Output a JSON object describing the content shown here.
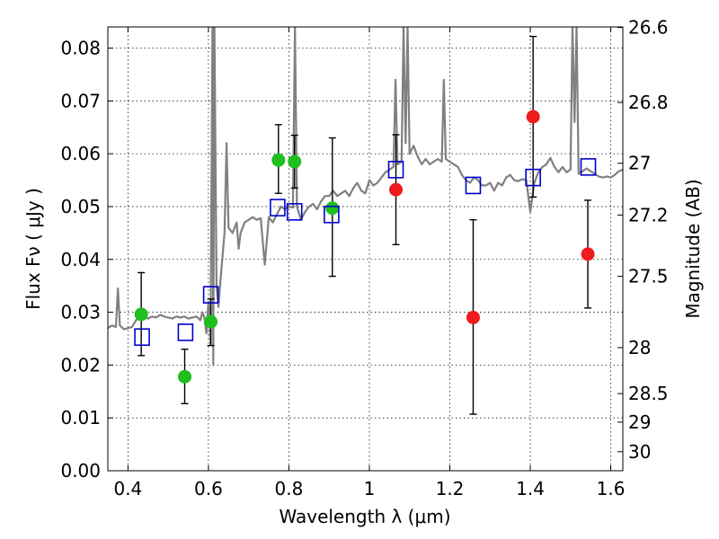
{
  "chart_data": {
    "type": "scatter",
    "xlabel": "Wavelength  λ (μm)",
    "ylabel": "Flux  Fν  ( μJy )",
    "y2label": "Magnitude (AB)",
    "xlim": [
      0.35,
      1.63
    ],
    "ylim": [
      0.0,
      0.084
    ],
    "x_ticks": [
      0.4,
      0.6,
      0.8,
      1.0,
      1.2,
      1.4,
      1.6
    ],
    "x_tick_labels": [
      "0.4",
      "0.6",
      "0.8",
      "1",
      "1.2",
      "1.4",
      "1.6"
    ],
    "y_ticks": [
      0.0,
      0.01,
      0.02,
      0.03,
      0.04,
      0.05,
      0.06,
      0.07,
      0.08
    ],
    "y_tick_labels": [
      "0.00",
      "0.01",
      "0.02",
      "0.03",
      "0.04",
      "0.05",
      "0.06",
      "0.07",
      "0.08"
    ],
    "y2_ticks": [
      {
        "label": "26.6",
        "flux": 0.0839
      },
      {
        "label": "26.8",
        "flux": 0.0697
      },
      {
        "label": "27",
        "flux": 0.0582
      },
      {
        "label": "27.2",
        "flux": 0.0484
      },
      {
        "label": "27.5",
        "flux": 0.0368
      },
      {
        "label": "28",
        "flux": 0.0233
      },
      {
        "label": "28.5",
        "flux": 0.0146
      },
      {
        "label": "29",
        "flux": 0.0092
      },
      {
        "label": "30",
        "flux": 0.0036
      }
    ],
    "colors": {
      "model": "#808080",
      "green": "#1ebf1e",
      "red": "#ee1c1c",
      "square": "#0000cc",
      "errorbar": "#000000"
    },
    "series": [
      {
        "name": "model spectrum",
        "kind": "line",
        "x": [
          0.35,
          0.36,
          0.37,
          0.375,
          0.38,
          0.39,
          0.4,
          0.41,
          0.42,
          0.43,
          0.44,
          0.45,
          0.46,
          0.47,
          0.48,
          0.49,
          0.5,
          0.51,
          0.52,
          0.53,
          0.54,
          0.55,
          0.56,
          0.57,
          0.58,
          0.585,
          0.59,
          0.595,
          0.6,
          0.605,
          0.61,
          0.612,
          0.615,
          0.62,
          0.625,
          0.63,
          0.64,
          0.645,
          0.65,
          0.66,
          0.67,
          0.675,
          0.68,
          0.69,
          0.7,
          0.71,
          0.72,
          0.73,
          0.74,
          0.75,
          0.76,
          0.77,
          0.78,
          0.79,
          0.8,
          0.81,
          0.815,
          0.82,
          0.83,
          0.84,
          0.85,
          0.86,
          0.87,
          0.88,
          0.89,
          0.9,
          0.91,
          0.92,
          0.93,
          0.94,
          0.95,
          0.96,
          0.97,
          0.98,
          0.99,
          1.0,
          1.01,
          1.02,
          1.03,
          1.04,
          1.05,
          1.06,
          1.065,
          1.07,
          1.08,
          1.085,
          1.09,
          1.095,
          1.1,
          1.11,
          1.12,
          1.13,
          1.14,
          1.15,
          1.16,
          1.17,
          1.18,
          1.185,
          1.19,
          1.2,
          1.21,
          1.22,
          1.23,
          1.24,
          1.25,
          1.26,
          1.27,
          1.28,
          1.29,
          1.3,
          1.31,
          1.32,
          1.33,
          1.34,
          1.35,
          1.36,
          1.37,
          1.38,
          1.39,
          1.4,
          1.41,
          1.42,
          1.43,
          1.44,
          1.45,
          1.46,
          1.47,
          1.48,
          1.49,
          1.5,
          1.505,
          1.51,
          1.515,
          1.52,
          1.53,
          1.54,
          1.55,
          1.56,
          1.57,
          1.58,
          1.59,
          1.6,
          1.61,
          1.62,
          1.63
        ],
        "y": [
          0.027,
          0.0275,
          0.0272,
          0.0345,
          0.0275,
          0.0268,
          0.027,
          0.0272,
          0.0285,
          0.029,
          0.0292,
          0.0288,
          0.0292,
          0.029,
          0.0295,
          0.0292,
          0.029,
          0.0288,
          0.0292,
          0.029,
          0.0292,
          0.0288,
          0.029,
          0.0292,
          0.0285,
          0.03,
          0.029,
          0.026,
          0.032,
          0.024,
          0.084,
          0.02,
          0.084,
          0.035,
          0.031,
          0.036,
          0.045,
          0.062,
          0.046,
          0.045,
          0.047,
          0.042,
          0.045,
          0.047,
          0.0475,
          0.048,
          0.0475,
          0.0478,
          0.039,
          0.048,
          0.047,
          0.0485,
          0.05,
          0.0495,
          0.05,
          0.0498,
          0.084,
          0.05,
          0.0475,
          0.049,
          0.05,
          0.0505,
          0.0495,
          0.051,
          0.052,
          0.052,
          0.053,
          0.052,
          0.0525,
          0.053,
          0.052,
          0.0535,
          0.0545,
          0.053,
          0.0525,
          0.055,
          0.054,
          0.0545,
          0.0555,
          0.0565,
          0.057,
          0.0575,
          0.074,
          0.058,
          0.0585,
          0.084,
          0.062,
          0.084,
          0.06,
          0.0615,
          0.0595,
          0.058,
          0.059,
          0.058,
          0.0585,
          0.059,
          0.0585,
          0.074,
          0.059,
          0.0585,
          0.058,
          0.0575,
          0.056,
          0.055,
          0.0545,
          0.0555,
          0.055,
          0.054,
          0.054,
          0.0545,
          0.053,
          0.0545,
          0.054,
          0.0555,
          0.056,
          0.055,
          0.0548,
          0.0552,
          0.055,
          0.049,
          0.0545,
          0.0565,
          0.0575,
          0.058,
          0.0592,
          0.0575,
          0.0565,
          0.0575,
          0.0565,
          0.057,
          0.084,
          0.066,
          0.084,
          0.0562,
          0.0567,
          0.0572,
          0.0567,
          0.0562,
          0.0557,
          0.0555,
          0.0557,
          0.0555,
          0.056,
          0.0567,
          0.057
        ]
      },
      {
        "name": "green points",
        "kind": "points",
        "marker": "circle",
        "points": [
          {
            "x": 0.433,
            "y": 0.0296,
            "yerr": [
              0.0218,
              0.0375
            ]
          },
          {
            "x": 0.541,
            "y": 0.0178,
            "yerr": [
              0.0127,
              0.023
            ]
          },
          {
            "x": 0.606,
            "y": 0.0282,
            "yerr": [
              0.0237,
              0.0325
            ]
          },
          {
            "x": 0.774,
            "y": 0.0588,
            "yerr": [
              0.0525,
              0.0655
            ]
          },
          {
            "x": 0.814,
            "y": 0.0585,
            "yerr": [
              0.0535,
              0.0635
            ]
          },
          {
            "x": 0.908,
            "y": 0.0497,
            "yerr": [
              0.0368,
              0.063
            ]
          }
        ]
      },
      {
        "name": "red points",
        "kind": "points",
        "marker": "circle",
        "points": [
          {
            "x": 1.066,
            "y": 0.0532,
            "yerr": [
              0.0428,
              0.0636
            ]
          },
          {
            "x": 1.258,
            "y": 0.029,
            "yerr": [
              0.0107,
              0.0475
            ]
          },
          {
            "x": 1.407,
            "y": 0.067,
            "yerr": [
              0.0518,
              0.0822
            ]
          },
          {
            "x": 1.543,
            "y": 0.041,
            "yerr": [
              0.0308,
              0.0512
            ]
          }
        ]
      },
      {
        "name": "model photometry",
        "kind": "points",
        "marker": "square",
        "points": [
          {
            "x": 0.435,
            "y": 0.0253
          },
          {
            "x": 0.543,
            "y": 0.0262
          },
          {
            "x": 0.606,
            "y": 0.0333
          },
          {
            "x": 0.772,
            "y": 0.0498
          },
          {
            "x": 0.814,
            "y": 0.049
          },
          {
            "x": 0.906,
            "y": 0.0485
          },
          {
            "x": 1.066,
            "y": 0.057
          },
          {
            "x": 1.258,
            "y": 0.054
          },
          {
            "x": 1.407,
            "y": 0.0555
          },
          {
            "x": 1.544,
            "y": 0.0575
          }
        ]
      }
    ]
  }
}
